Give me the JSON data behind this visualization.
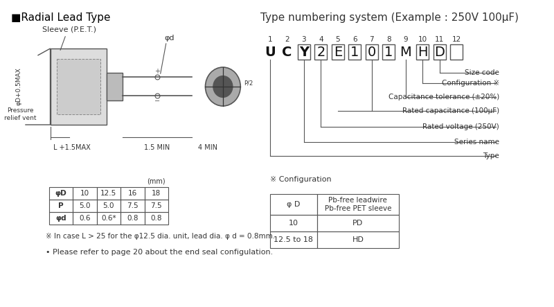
{
  "bg_color": "#ffffff",
  "title_left": "■Radial Lead Type",
  "title_right": "Type numbering system (Example : 250V 100μF)",
  "left_section": {
    "sleeve_label": "Sleeve (P.E.T.)",
    "phid_label": "φd",
    "l_label": "L +1.5MAX",
    "ls_label": "1.5 MIN",
    "fourmin_label": "4 MIN",
    "pressure_label": "Pressure\nrelief vent",
    "phid_side_label": "φD+0.5MAX"
  },
  "table_left": {
    "headers": [
      "φD",
      "10",
      "12.5",
      "16",
      "18"
    ],
    "row1": [
      "P",
      "5.0",
      "5.0",
      "7.5",
      "7.5"
    ],
    "row2": [
      "φd",
      "0.6",
      "0.6*",
      "0.8",
      "0.8"
    ],
    "unit": "(mm)"
  },
  "note1": "※ In case L > 25 for the φ12.5 dia. unit, lead dia. φ d = 0.8mm.",
  "note2": "• Please refer to page 20 about the end seal configulation.",
  "right_section": {
    "numbers": [
      "1",
      "2",
      "3",
      "4",
      "5",
      "6",
      "7",
      "8",
      "9",
      "10",
      "11",
      "12"
    ],
    "chars": [
      "U",
      "C",
      "Y",
      "2",
      "E",
      "1",
      "0",
      "1",
      "M",
      "H",
      "D",
      ""
    ],
    "boxed": [
      3,
      4,
      5,
      6,
      7,
      8,
      10,
      11,
      12
    ],
    "labels": [
      "Size code",
      "Configuration ※",
      "Capacitance tolerance (±20%)",
      "Rated capacitance (100μF)",
      "Rated voltage (250V)",
      "Series name",
      "Type"
    ],
    "label_chars": [
      11,
      10,
      9,
      7,
      4,
      3,
      1
    ],
    "config_title": "※ Configuration",
    "config_headers": [
      "φ D",
      "Pb-free leadwire\nPb-free PET sleeve"
    ],
    "config_rows": [
      [
        "10",
        "PD"
      ],
      [
        "12.5 to 18",
        "HD"
      ]
    ]
  }
}
